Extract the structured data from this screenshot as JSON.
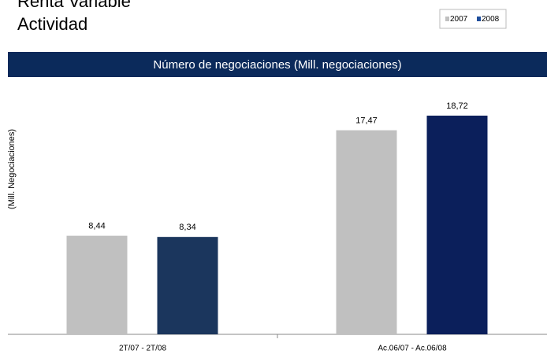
{
  "heading": {
    "title": "Renta Variable",
    "subtitle": "Actividad"
  },
  "chart_data": {
    "type": "bar",
    "title": "Número de negociaciones (Mill. negociaciones)",
    "y_label": "(Mill. Negociaciones)",
    "categories": [
      "2T/07 - 2T/08",
      "Ac.06/07 - Ac.06/08"
    ],
    "series": [
      {
        "name": "2007",
        "color": "#c0c0c0",
        "values": [
          8.44,
          17.47
        ],
        "value_labels": [
          "8,44",
          "17,47"
        ]
      },
      {
        "name": "2008",
        "color": "#1f4e9c",
        "point_colors": [
          "#1b365d",
          "#0b1f5b"
        ],
        "values": [
          8.34,
          18.72
        ],
        "value_labels": [
          "8,34",
          "18,72"
        ]
      }
    ],
    "ylim": [
      0,
      20
    ],
    "legend": "top-right"
  }
}
